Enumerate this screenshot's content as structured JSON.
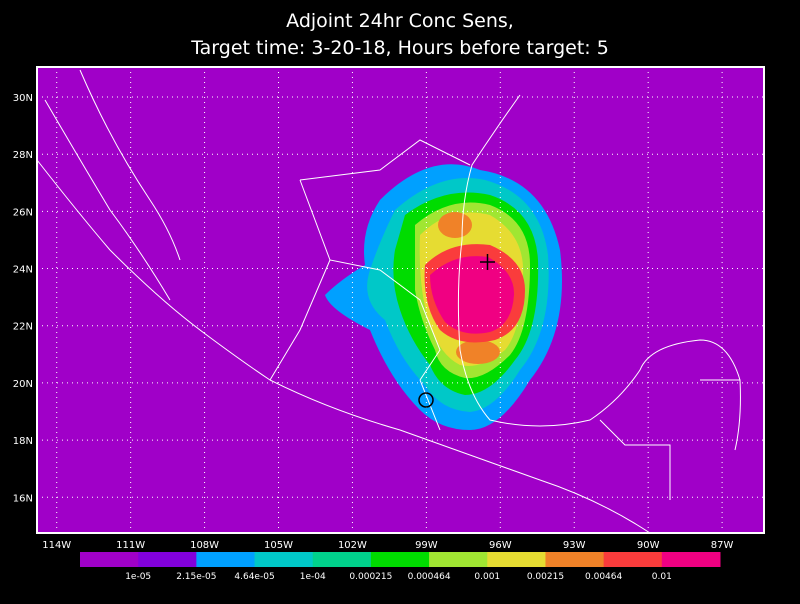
{
  "title": [
    "Adjoint 24hr Conc Sens,",
    "Target time: 3-20-18, Hours before target: 5"
  ],
  "map": {
    "background": "#a000c8",
    "xlim": [
      -114.8,
      -85.3
    ],
    "ylim": [
      14.75,
      31.05
    ],
    "lon_ticks": [
      {
        "value": -114,
        "label": "114W"
      },
      {
        "value": -111,
        "label": "111W"
      },
      {
        "value": -108,
        "label": "108W"
      },
      {
        "value": -105,
        "label": "105W"
      },
      {
        "value": -102,
        "label": "102W"
      },
      {
        "value": -99,
        "label": "99W"
      },
      {
        "value": -96,
        "label": "96W"
      },
      {
        "value": -93,
        "label": "93W"
      },
      {
        "value": -90,
        "label": "90W"
      },
      {
        "value": -87,
        "label": "87W"
      }
    ],
    "lat_ticks": [
      {
        "value": 16,
        "label": "16N"
      },
      {
        "value": 18,
        "label": "18N"
      },
      {
        "value": 20,
        "label": "20N"
      },
      {
        "value": 22,
        "label": "22N"
      },
      {
        "value": 24,
        "label": "24N"
      },
      {
        "value": 26,
        "label": "26N"
      },
      {
        "value": 28,
        "label": "28N"
      },
      {
        "value": 30,
        "label": "30N"
      }
    ]
  },
  "colorbar": {
    "colors": [
      "#a000c8",
      "#8200dc",
      "#00a0ff",
      "#00c8c8",
      "#00d28c",
      "#00dc00",
      "#a0e632",
      "#e6dc32",
      "#f08228",
      "#fa3c3c",
      "#f00082"
    ],
    "labels": [
      "1e-05",
      "2.15e-05",
      "4.64e-05",
      "1e-04",
      "0.000215",
      "0.000464",
      "0.001",
      "0.00215",
      "0.00464",
      "0.01"
    ]
  }
}
